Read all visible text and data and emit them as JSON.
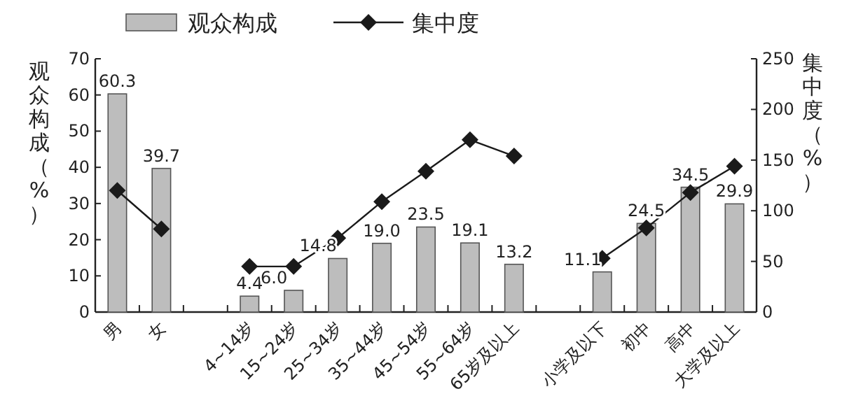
{
  "chart_data": {
    "type": "bar",
    "categories": [
      "男",
      "女",
      null,
      "4~14岁",
      "15~24岁",
      "25~34岁",
      "35~44岁",
      "45~54岁",
      "55~64岁",
      "65岁及以上",
      null,
      "小学及以下",
      "初中",
      "高中",
      "大学及以上"
    ],
    "series": [
      {
        "name": "观众构成",
        "color": "#bdbdbd",
        "values": [
          60.3,
          39.7,
          null,
          4.4,
          6.0,
          14.8,
          19.0,
          23.5,
          19.1,
          13.2,
          null,
          11.1,
          24.5,
          34.5,
          29.9
        ],
        "value_labels": [
          "60.3",
          "39.7",
          null,
          "4.4",
          "6.0",
          "14.8",
          "19.0",
          "23.5",
          "19.1",
          "13.2",
          null,
          "11.1",
          "24.5",
          "34.5",
          "29.9"
        ]
      },
      {
        "name": "集中度",
        "type": "line",
        "axis": "y2",
        "color": "#1a1a1a",
        "marker": "diamond",
        "values": [
          120,
          82,
          null,
          45,
          45,
          73,
          109,
          139,
          170,
          154,
          null,
          53,
          83,
          118,
          144
        ]
      }
    ],
    "ylabel": "观众构成（%）",
    "y2label": "集中度（%）",
    "ylim": [
      0,
      70
    ],
    "yticks": [
      0,
      10,
      20,
      30,
      40,
      50,
      60,
      70
    ],
    "y2lim": [
      0,
      250
    ],
    "y2ticks": [
      0,
      50,
      100,
      150,
      200,
      250
    ],
    "legend": "top"
  }
}
